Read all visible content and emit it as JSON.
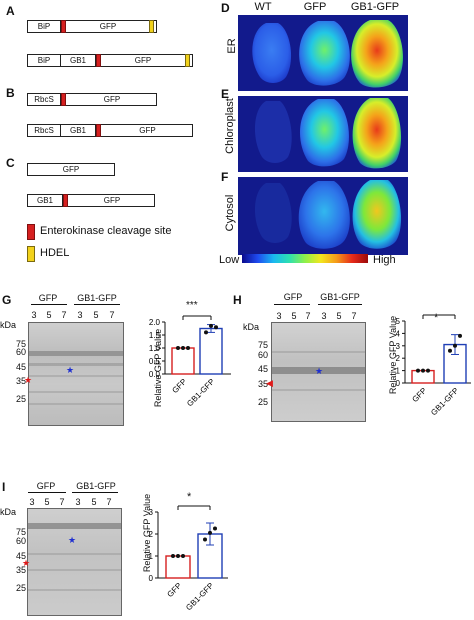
{
  "panel_labels": {
    "A": "A",
    "B": "B",
    "C": "C",
    "D": "D",
    "E": "E",
    "F": "F",
    "G": "G",
    "H": "H",
    "I": "I"
  },
  "constructs": {
    "A1": {
      "seg1": "BiP",
      "seg2": "GFP"
    },
    "A2": {
      "seg1": "BiP",
      "seg2": "GB1",
      "seg3": "GFP"
    },
    "B1": {
      "seg1": "RbcS",
      "seg2": "GFP"
    },
    "B2": {
      "seg1": "RbcS",
      "seg2": "GB1",
      "seg3": "GFP"
    },
    "C1": {
      "seg1": "GFP"
    },
    "C2": {
      "seg1": "GB1",
      "seg2": "GFP"
    }
  },
  "legend": {
    "red": "Enterokinase cleavage site",
    "yellow": "HDEL"
  },
  "leaf_columns": [
    "WT",
    "GFP",
    "GB1-GFP"
  ],
  "leaf_rows": [
    "ER",
    "Chloroplast",
    "Cytosol"
  ],
  "colorbar": {
    "low": "Low",
    "high": "High"
  },
  "gels": {
    "G": {
      "kda": "kDa",
      "markers": [
        "75",
        "60",
        "45",
        "35",
        "25"
      ],
      "group1": "GFP",
      "group2": "GB1-GFP",
      "lanes": [
        "3",
        "5",
        "7",
        "3",
        "5",
        "7"
      ]
    },
    "H": {
      "kda": "kDa",
      "markers": [
        "75",
        "60",
        "45",
        "35",
        "25"
      ],
      "group1": "GFP",
      "group2": "GB1-GFP",
      "lanes": [
        "3",
        "5",
        "7",
        "3",
        "5",
        "7"
      ]
    },
    "I": {
      "kda": "kDa",
      "markers": [
        "75",
        "60",
        "45",
        "35",
        "25"
      ],
      "group1": "GFP",
      "group2": "GB1-GFP",
      "lanes": [
        "3",
        "5",
        "7",
        "3",
        "5",
        "7"
      ]
    }
  },
  "chart_data": [
    {
      "type": "bar",
      "panel": "G",
      "categories": [
        "GFP",
        "GB1-GFP"
      ],
      "values": [
        1.0,
        1.75
      ],
      "points": [
        [
          1,
          1,
          1
        ],
        [
          1.6,
          1.85,
          1.8
        ]
      ],
      "errors": [
        0,
        0.15
      ],
      "ylabel": "Relative GFP Value",
      "ylim": [
        0,
        2.0
      ],
      "yticks": [
        "0.0",
        "0.5",
        "1.0",
        "1.5",
        "2.0"
      ],
      "significance": "***",
      "colors": [
        "#d62020",
        "#1f3fb5"
      ]
    },
    {
      "type": "bar",
      "panel": "H",
      "categories": [
        "GFP",
        "GB1-GFP"
      ],
      "values": [
        1.0,
        3.1
      ],
      "points": [
        [
          1,
          1,
          1
        ],
        [
          2.6,
          3.0,
          3.8
        ]
      ],
      "errors": [
        0,
        0.8
      ],
      "ylabel": "Relative GFP Value",
      "ylim": [
        0,
        5
      ],
      "yticks": [
        "0",
        "1",
        "2",
        "3",
        "4",
        "5"
      ],
      "significance": "*",
      "colors": [
        "#d62020",
        "#1f3fb5"
      ]
    },
    {
      "type": "bar",
      "panel": "I",
      "categories": [
        "GFP",
        "GB1-GFP"
      ],
      "values": [
        1.0,
        2.0
      ],
      "points": [
        [
          1,
          1,
          1
        ],
        [
          1.75,
          2.05,
          2.25
        ]
      ],
      "errors": [
        0,
        0.5
      ],
      "ylabel": "Relative GFP Value",
      "ylim": [
        0,
        3
      ],
      "yticks": [
        "0",
        "1",
        "2",
        "3"
      ],
      "significance": "*",
      "colors": [
        "#d62020",
        "#1f3fb5"
      ]
    }
  ]
}
